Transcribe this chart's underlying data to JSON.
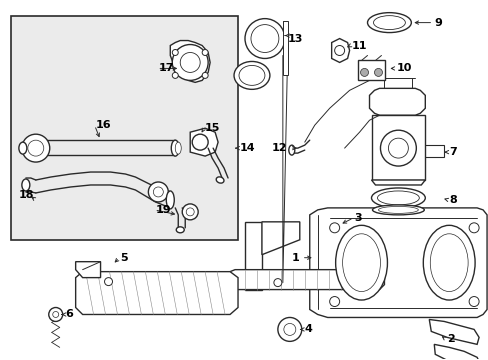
{
  "background_color": "#ffffff",
  "line_color": "#2a2a2a",
  "inset_bg": "#ebebeb",
  "figsize": [
    4.89,
    3.6
  ],
  "dpi": 100
}
